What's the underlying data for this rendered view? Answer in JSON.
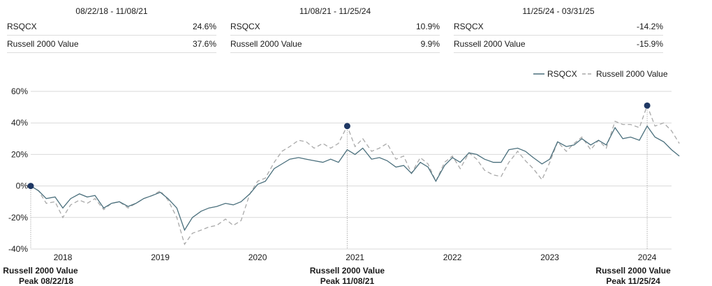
{
  "periods": [
    {
      "range": "08/22/18 - 11/08/21",
      "rows": [
        {
          "name": "RSQCX",
          "value": "24.6%"
        },
        {
          "name": "Russell 2000 Value",
          "value": "37.6%"
        }
      ]
    },
    {
      "range": "11/08/21 - 11/25/24",
      "rows": [
        {
          "name": "RSQCX",
          "value": "10.9%"
        },
        {
          "name": "Russell 2000 Value",
          "value": "9.9%"
        }
      ]
    },
    {
      "range": "11/25/24 - 03/31/25",
      "rows": [
        {
          "name": "RSQCX",
          "value": "-14.2%"
        },
        {
          "name": "Russell 2000 Value",
          "value": "-15.9%"
        }
      ]
    }
  ],
  "colors": {
    "rsqcx": "#4a6f7c",
    "benchmark": "#a9a9a9",
    "marker": "#1f3864",
    "grid": "#d9d9d9"
  },
  "chart_data": {
    "type": "line",
    "y_ticks": [
      "60%",
      "40%",
      "20%",
      "0%",
      "-20%",
      "-40%"
    ],
    "ylim": [
      -40,
      60
    ],
    "x_ticks": [
      "2018",
      "2019",
      "2020",
      "2021",
      "2022",
      "2023",
      "2024"
    ],
    "x_tick_years": [
      2018,
      2019,
      2020,
      2021,
      2022,
      2023,
      2024
    ],
    "xlim": [
      2017.67,
      2024.25
    ],
    "legend": {
      "position": "top-right"
    },
    "series": [
      {
        "name": "RSQCX",
        "style": "solid",
        "points": [
          [
            2017.67,
            0
          ],
          [
            2017.75,
            -3
          ],
          [
            2017.83,
            -8
          ],
          [
            2017.92,
            -7
          ],
          [
            2018.0,
            -14
          ],
          [
            2018.08,
            -8
          ],
          [
            2018.17,
            -5
          ],
          [
            2018.25,
            -7
          ],
          [
            2018.33,
            -6
          ],
          [
            2018.42,
            -14
          ],
          [
            2018.5,
            -11
          ],
          [
            2018.58,
            -10
          ],
          [
            2018.67,
            -13
          ],
          [
            2018.75,
            -11
          ],
          [
            2018.83,
            -8
          ],
          [
            2018.92,
            -6
          ],
          [
            2019.0,
            -4
          ],
          [
            2019.08,
            -8
          ],
          [
            2019.17,
            -14
          ],
          [
            2019.25,
            -28
          ],
          [
            2019.33,
            -20
          ],
          [
            2019.42,
            -16
          ],
          [
            2019.5,
            -14
          ],
          [
            2019.58,
            -13
          ],
          [
            2019.67,
            -11
          ],
          [
            2019.75,
            -12
          ],
          [
            2019.83,
            -10
          ],
          [
            2019.92,
            -5
          ],
          [
            2020.0,
            1
          ],
          [
            2020.08,
            3
          ],
          [
            2020.17,
            11
          ],
          [
            2020.25,
            14
          ],
          [
            2020.33,
            17
          ],
          [
            2020.42,
            18
          ],
          [
            2020.5,
            17
          ],
          [
            2020.58,
            16
          ],
          [
            2020.67,
            15
          ],
          [
            2020.75,
            17
          ],
          [
            2020.83,
            15
          ],
          [
            2020.92,
            23
          ],
          [
            2021.0,
            20
          ],
          [
            2021.08,
            24
          ],
          [
            2021.17,
            17
          ],
          [
            2021.25,
            18
          ],
          [
            2021.33,
            16
          ],
          [
            2021.42,
            12
          ],
          [
            2021.5,
            13
          ],
          [
            2021.58,
            8
          ],
          [
            2021.67,
            15
          ],
          [
            2021.75,
            12
          ],
          [
            2021.83,
            3
          ],
          [
            2021.92,
            13
          ],
          [
            2022.0,
            18
          ],
          [
            2022.08,
            15
          ],
          [
            2022.17,
            21
          ],
          [
            2022.25,
            20
          ],
          [
            2022.33,
            17
          ],
          [
            2022.42,
            15
          ],
          [
            2022.5,
            15
          ],
          [
            2022.58,
            23
          ],
          [
            2022.67,
            24
          ],
          [
            2022.75,
            22
          ],
          [
            2022.83,
            18
          ],
          [
            2022.92,
            14
          ],
          [
            2023.0,
            17
          ],
          [
            2023.08,
            28
          ],
          [
            2023.17,
            25
          ],
          [
            2023.25,
            26
          ],
          [
            2023.33,
            30
          ],
          [
            2023.42,
            26
          ],
          [
            2023.5,
            29
          ],
          [
            2023.58,
            26
          ],
          [
            2023.67,
            37
          ],
          [
            2023.75,
            30
          ],
          [
            2023.83,
            31
          ],
          [
            2023.92,
            29
          ],
          [
            2024.0,
            38
          ],
          [
            2024.08,
            31
          ],
          [
            2024.17,
            28
          ],
          [
            2024.25,
            23
          ],
          [
            2024.33,
            19
          ]
        ]
      },
      {
        "name": "Russell 2000 Value",
        "style": "dashed",
        "points": [
          [
            2017.67,
            0
          ],
          [
            2017.75,
            -3
          ],
          [
            2017.83,
            -11
          ],
          [
            2017.92,
            -10
          ],
          [
            2018.0,
            -20
          ],
          [
            2018.08,
            -12
          ],
          [
            2018.17,
            -9
          ],
          [
            2018.25,
            -11
          ],
          [
            2018.33,
            -8
          ],
          [
            2018.42,
            -15
          ],
          [
            2018.5,
            -11
          ],
          [
            2018.58,
            -10
          ],
          [
            2018.67,
            -14
          ],
          [
            2018.75,
            -11
          ],
          [
            2018.83,
            -8
          ],
          [
            2018.92,
            -6
          ],
          [
            2019.0,
            -3
          ],
          [
            2019.08,
            -9
          ],
          [
            2019.17,
            -20
          ],
          [
            2019.25,
            -37
          ],
          [
            2019.33,
            -30
          ],
          [
            2019.42,
            -28
          ],
          [
            2019.5,
            -26
          ],
          [
            2019.58,
            -25
          ],
          [
            2019.67,
            -21
          ],
          [
            2019.75,
            -25
          ],
          [
            2019.83,
            -22
          ],
          [
            2019.92,
            -5
          ],
          [
            2020.0,
            3
          ],
          [
            2020.08,
            5
          ],
          [
            2020.17,
            15
          ],
          [
            2020.25,
            22
          ],
          [
            2020.33,
            25
          ],
          [
            2020.42,
            29
          ],
          [
            2020.5,
            28
          ],
          [
            2020.58,
            24
          ],
          [
            2020.67,
            27
          ],
          [
            2020.75,
            24
          ],
          [
            2020.83,
            27
          ],
          [
            2020.92,
            38
          ],
          [
            2021.0,
            25
          ],
          [
            2021.08,
            30
          ],
          [
            2021.17,
            22
          ],
          [
            2021.25,
            24
          ],
          [
            2021.33,
            27
          ],
          [
            2021.42,
            17
          ],
          [
            2021.5,
            19
          ],
          [
            2021.58,
            8
          ],
          [
            2021.67,
            18
          ],
          [
            2021.75,
            14
          ],
          [
            2021.83,
            3
          ],
          [
            2021.92,
            15
          ],
          [
            2022.0,
            19
          ],
          [
            2022.08,
            11
          ],
          [
            2022.17,
            21
          ],
          [
            2022.25,
            17
          ],
          [
            2022.33,
            10
          ],
          [
            2022.42,
            7
          ],
          [
            2022.5,
            6
          ],
          [
            2022.58,
            15
          ],
          [
            2022.67,
            22
          ],
          [
            2022.75,
            16
          ],
          [
            2022.83,
            11
          ],
          [
            2022.92,
            4
          ],
          [
            2023.0,
            15
          ],
          [
            2023.08,
            28
          ],
          [
            2023.17,
            22
          ],
          [
            2023.25,
            27
          ],
          [
            2023.33,
            31
          ],
          [
            2023.42,
            23
          ],
          [
            2023.5,
            29
          ],
          [
            2023.58,
            24
          ],
          [
            2023.67,
            41
          ],
          [
            2023.75,
            39
          ],
          [
            2023.83,
            39
          ],
          [
            2023.92,
            37
          ],
          [
            2024.0,
            51
          ],
          [
            2024.08,
            38
          ],
          [
            2024.17,
            40
          ],
          [
            2024.25,
            35
          ],
          [
            2024.33,
            27
          ]
        ]
      }
    ],
    "peaks": [
      {
        "x": 2017.67,
        "y": 0,
        "line1": "Russell 2000 Value",
        "line2": "Peak 08/22/18"
      },
      {
        "x": 2020.92,
        "y": 38,
        "line1": "Russell 2000 Value",
        "line2": "Peak 11/08/21"
      },
      {
        "x": 2024.0,
        "y": 51,
        "line1": "Russell 2000 Value",
        "line2": "Peak 11/25/24"
      }
    ]
  }
}
